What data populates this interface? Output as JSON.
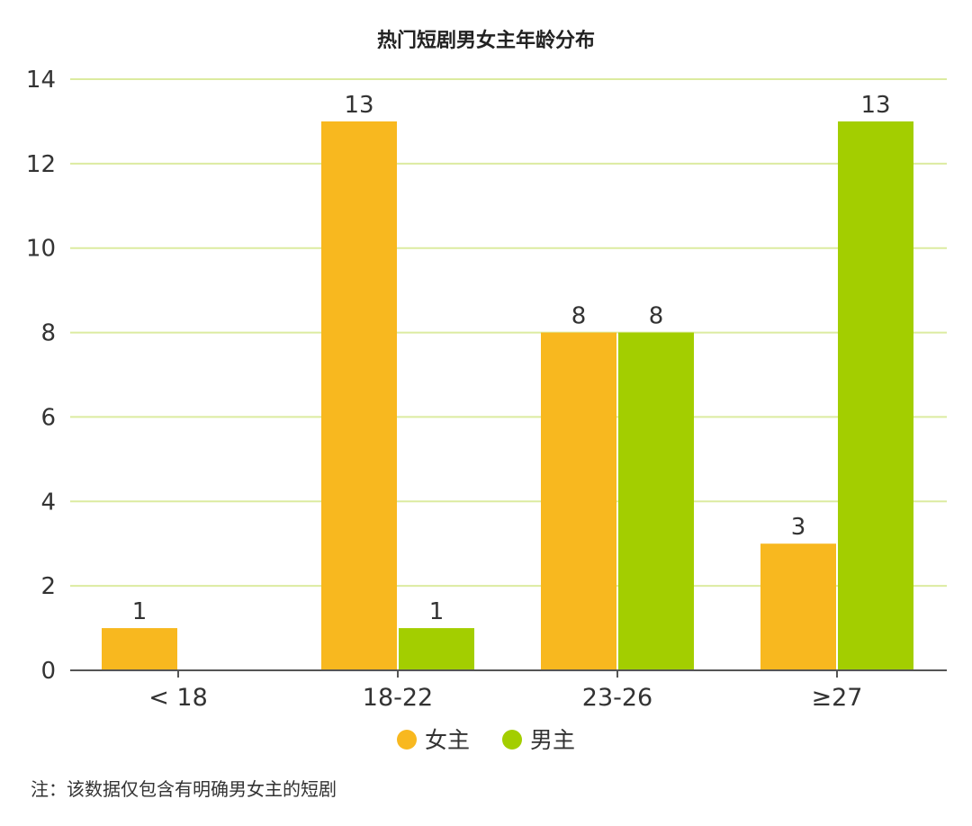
{
  "chart_data": {
    "type": "bar",
    "title": "热门短剧男女主年龄分布",
    "categories": [
      "< 18",
      "18-22",
      "23-26",
      "≥27"
    ],
    "series": [
      {
        "name": "女主",
        "color": "#F8B81F",
        "values": [
          1,
          13,
          8,
          3
        ]
      },
      {
        "name": "男主",
        "color": "#A3CE00",
        "values": [
          null,
          1,
          8,
          13
        ]
      }
    ],
    "ylim": [
      0,
      14
    ],
    "yticks": [
      0,
      2,
      4,
      6,
      8,
      10,
      12,
      14
    ],
    "grid": true,
    "grid_color": "#DCEBA0",
    "legend_position": "bottom",
    "xlabel": "",
    "ylabel": ""
  },
  "note": "注：该数据仅包含有明确男女主的短剧"
}
